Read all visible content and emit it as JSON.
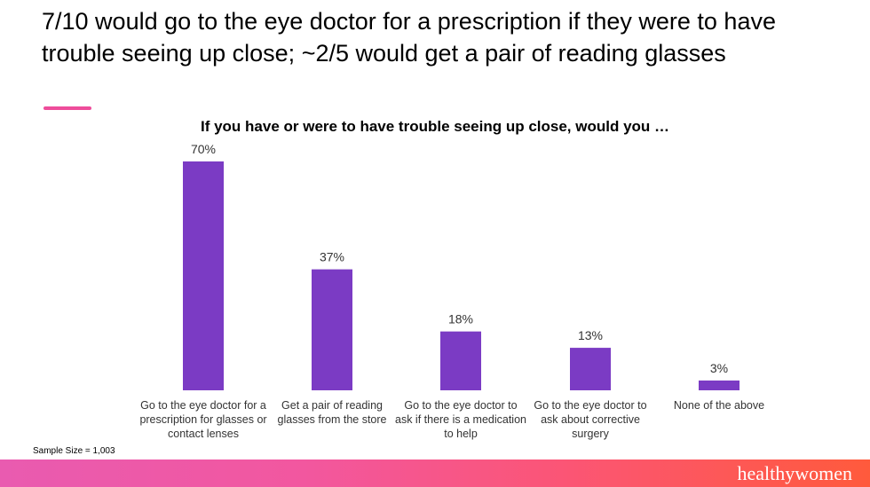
{
  "headline": "7/10 would go to the eye doctor for a prescription if they were to have trouble seeing up close; ~2/5 would get a pair of reading glasses",
  "sample_size": "Sample Size = 1,003",
  "brand": "healthywomen",
  "colors": {
    "bar": "#7b3bc4",
    "accent": "#ee4d9b"
  },
  "chart_data": {
    "type": "bar",
    "title": "If you have or were to have trouble seeing up close, would you …",
    "categories": [
      "Go to the eye doctor for a prescription for glasses or contact lenses",
      "Get a pair of reading glasses from the store",
      "Go to the eye doctor to ask if there is a medication to help",
      "Go to the eye doctor to ask about corrective surgery",
      "None of the above"
    ],
    "values": [
      70,
      37,
      18,
      13,
      3
    ],
    "data_labels": [
      "70%",
      "37%",
      "18%",
      "13%",
      "3%"
    ],
    "ylim": [
      0,
      70
    ],
    "grid": false
  }
}
